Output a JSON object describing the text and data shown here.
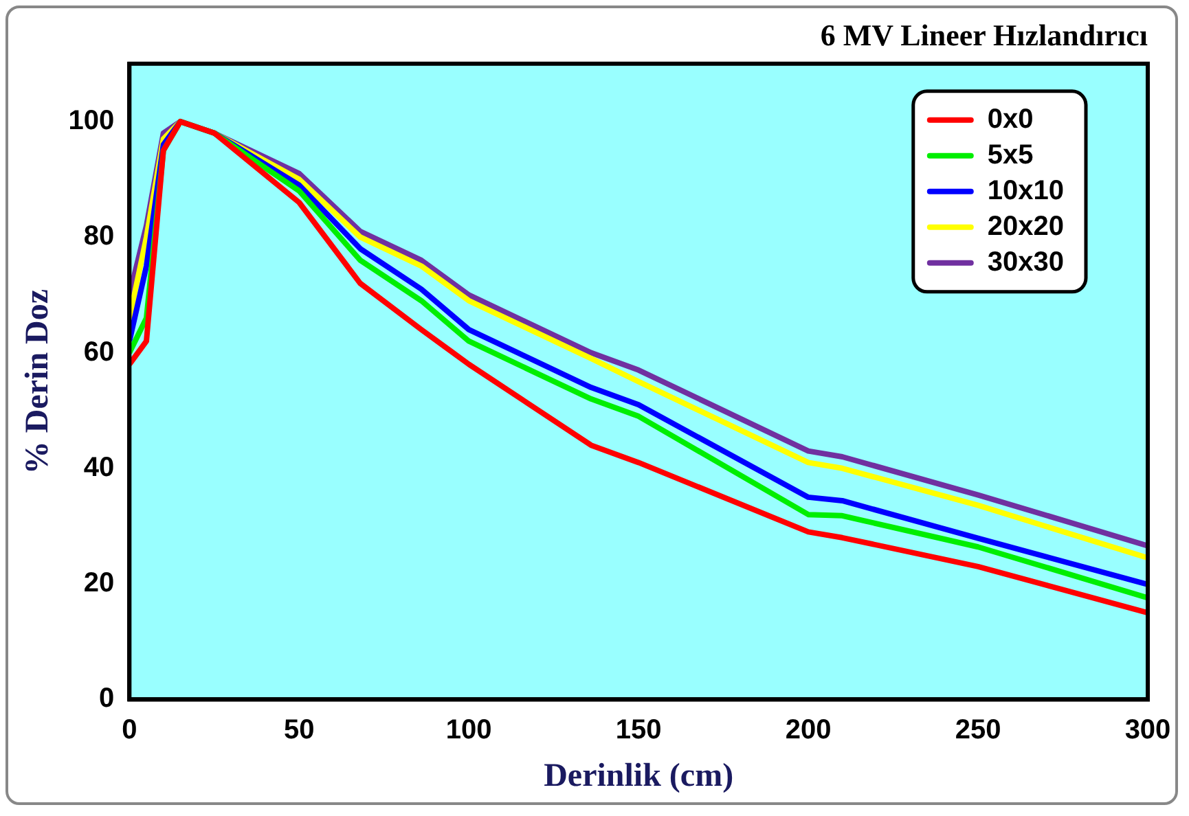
{
  "chart_data": {
    "type": "line",
    "title": "6 MV Lineer Hızlandırıcı",
    "xlabel": "Derinlik (cm)",
    "ylabel": "% Derin Doz",
    "x": [
      0,
      5,
      10,
      15,
      25,
      50,
      68,
      86,
      100,
      136,
      150,
      200,
      210,
      250,
      300
    ],
    "series": [
      {
        "name": "0x0",
        "color": "#ff0000",
        "values": [
          58,
          62,
          95,
          100,
          98,
          86,
          72,
          64,
          58,
          44,
          41,
          29,
          28,
          23,
          15
        ]
      },
      {
        "name": "5x5",
        "color": "#00ee00",
        "values": [
          60,
          66,
          95,
          100,
          98,
          88,
          76,
          69,
          62,
          52,
          49,
          32,
          31.8,
          26.4,
          17.6
        ]
      },
      {
        "name": "10x10",
        "color": "#0000ff",
        "values": [
          62,
          75,
          96,
          100,
          98,
          89,
          78,
          71,
          64,
          54,
          51,
          35,
          34.4,
          27.9,
          19.9
        ]
      },
      {
        "name": "20x20",
        "color": "#ffff00",
        "values": [
          66,
          80,
          97,
          100,
          98,
          90,
          80,
          75,
          69,
          59,
          55,
          41,
          40,
          33.6,
          24.5
        ]
      },
      {
        "name": "30x30",
        "color": "#7030a0",
        "values": [
          70,
          82,
          98,
          100,
          98,
          91,
          81,
          76,
          70,
          60,
          57,
          43,
          42,
          35.4,
          26.6
        ]
      }
    ],
    "xlim": [
      0,
      300
    ],
    "xticks": [
      0,
      50,
      100,
      150,
      200,
      250,
      300
    ],
    "ylim": [
      0,
      110
    ],
    "yticks": [
      0,
      20,
      40,
      60,
      80,
      100
    ],
    "grid": false,
    "legend": "top right",
    "marker": "none",
    "line_style": "solid"
  }
}
